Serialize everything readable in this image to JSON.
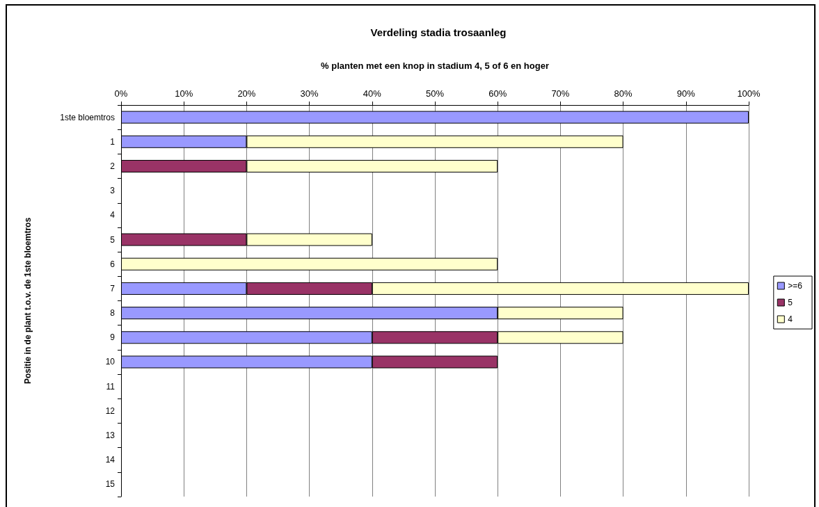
{
  "chart_data": {
    "type": "bar",
    "orientation": "horizontal",
    "stacked": true,
    "title": "Verdeling stadia trosaanleg",
    "xlabel": "% planten met een knop in stadium 4, 5 of 6 en hoger",
    "ylabel": "Positie in de plant t.o.v. de 1ste bloemtros",
    "categories": [
      "1ste bloemtros",
      "1",
      "2",
      "3",
      "4",
      "5",
      "6",
      "7",
      "8",
      "9",
      "10",
      "11",
      "12",
      "13",
      "14",
      "15"
    ],
    "series": [
      {
        "name": ">=6",
        "color": "#9999ff",
        "values": [
          100,
          20,
          null,
          null,
          null,
          null,
          null,
          20,
          60,
          40,
          40,
          null,
          null,
          null,
          null,
          null
        ]
      },
      {
        "name": "5",
        "color": "#993366",
        "values": [
          null,
          null,
          20,
          null,
          null,
          20,
          null,
          20,
          null,
          20,
          20,
          null,
          null,
          null,
          null,
          null
        ]
      },
      {
        "name": "4",
        "color": "#ffffcc",
        "values": [
          null,
          60,
          40,
          null,
          null,
          20,
          60,
          60,
          20,
          20,
          null,
          null,
          null,
          null,
          null,
          null
        ]
      }
    ],
    "xlim": [
      0,
      100
    ],
    "xticks": [
      {
        "value": 0,
        "label": "0%"
      },
      {
        "value": 10,
        "label": "10%"
      },
      {
        "value": 20,
        "label": "20%"
      },
      {
        "value": 30,
        "label": "30%"
      },
      {
        "value": 40,
        "label": "40%"
      },
      {
        "value": 50,
        "label": "50%"
      },
      {
        "value": 60,
        "label": "60%"
      },
      {
        "value": 70,
        "label": "70%"
      },
      {
        "value": 80,
        "label": "80%"
      },
      {
        "value": 90,
        "label": "90%"
      },
      {
        "value": 100,
        "label": "100%"
      }
    ],
    "grid": "x",
    "legend": "right"
  }
}
